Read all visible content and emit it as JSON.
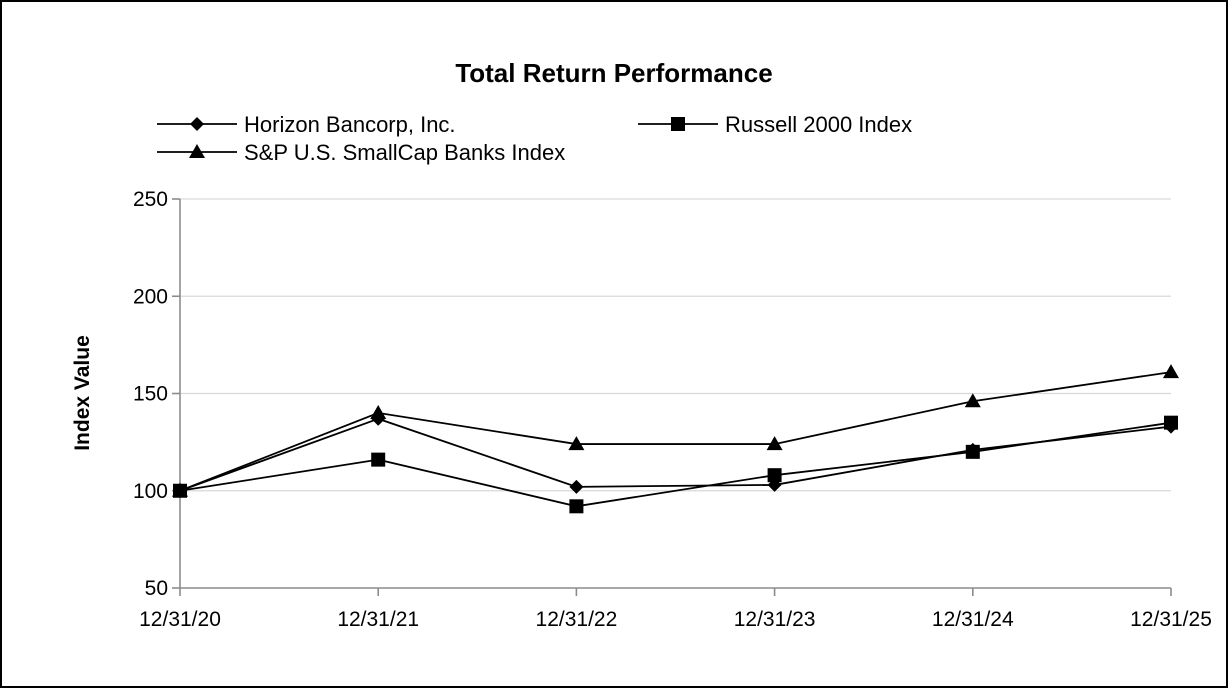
{
  "chart_data": {
    "type": "line",
    "title": "Total Return Performance",
    "xlabel": "",
    "ylabel": "Index Value",
    "categories": [
      "12/31/20",
      "12/31/21",
      "12/31/22",
      "12/31/23",
      "12/31/24",
      "12/31/25"
    ],
    "ylim": [
      50,
      250
    ],
    "yticks": [
      50,
      100,
      150,
      200,
      250
    ],
    "grid": true,
    "legend_position": "top",
    "series": [
      {
        "name": "Horizon Bancorp, Inc.",
        "marker": "diamond",
        "color": "#000000",
        "values": [
          100,
          137,
          102,
          103,
          121,
          133
        ]
      },
      {
        "name": "Russell 2000 Index",
        "marker": "square",
        "color": "#000000",
        "values": [
          100,
          116,
          92,
          108,
          120,
          135
        ]
      },
      {
        "name": "S&P U.S. SmallCap Banks Index",
        "marker": "triangle",
        "color": "#000000",
        "values": [
          100,
          140,
          124,
          124,
          146,
          161
        ]
      }
    ]
  }
}
